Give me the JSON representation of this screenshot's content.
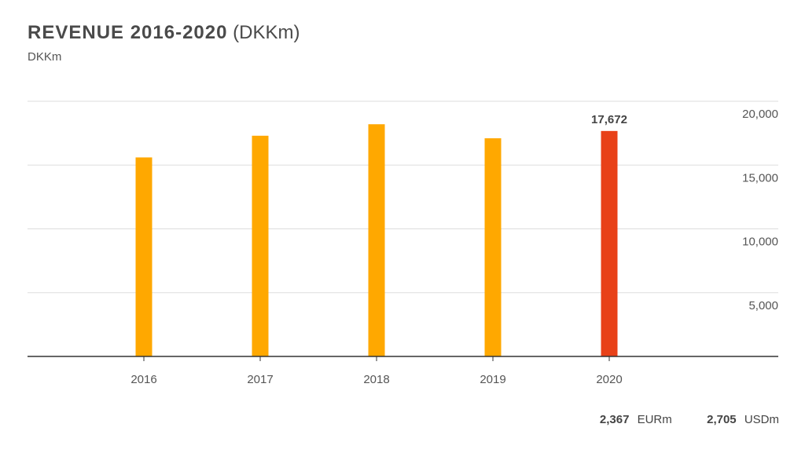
{
  "title": "REVENUE 2016-2020",
  "title_unit": "(DKKm)",
  "subtitle": "DKKm",
  "colors": {
    "bar": "#FFA800",
    "highlight": "#E84118",
    "grid": "#dddddd",
    "axis": "#333333"
  },
  "footer": {
    "eur_value": "2,367",
    "eur_unit": "EURm",
    "usd_value": "2,705",
    "usd_unit": "USDm"
  },
  "chart_data": {
    "type": "bar",
    "categories": [
      "2016",
      "2017",
      "2018",
      "2019",
      "2020"
    ],
    "values": [
      15600,
      17300,
      18200,
      17100,
      17672
    ],
    "highlight_index": 4,
    "data_labels": [
      null,
      null,
      null,
      null,
      "17,672"
    ],
    "ylim": [
      0,
      20000
    ],
    "yticks": [
      5000,
      10000,
      15000,
      20000
    ],
    "ytick_labels": [
      "5,000",
      "10,000",
      "15,000",
      "20,000"
    ],
    "yaxis_position": "right",
    "grid": true,
    "xlabel": "",
    "ylabel": ""
  }
}
